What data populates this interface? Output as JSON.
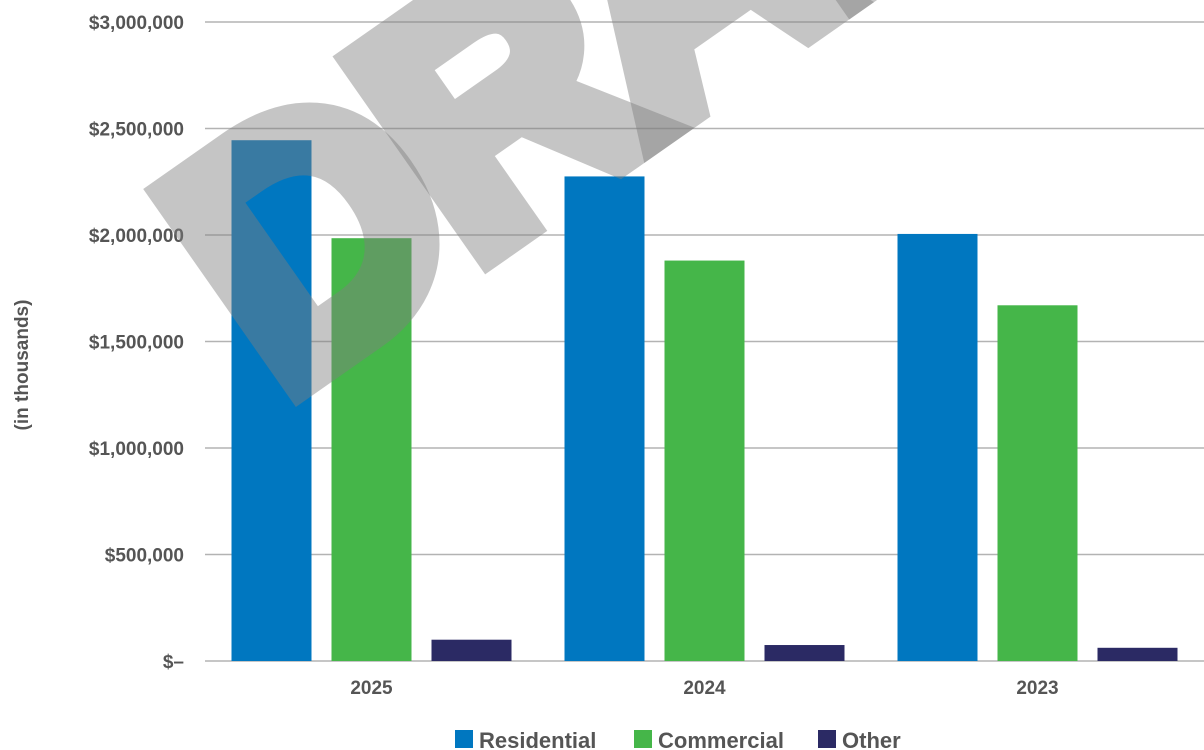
{
  "chart_data": {
    "type": "bar",
    "categories": [
      "2025",
      "2024",
      "2023"
    ],
    "series": [
      {
        "name": "Residential",
        "values": [
          2445000,
          2275000,
          2005000
        ],
        "color": "#0077c0"
      },
      {
        "name": "Commercial",
        "values": [
          1985000,
          1880000,
          1670000
        ],
        "color": "#45b649"
      },
      {
        "name": "Other",
        "values": [
          100000,
          75000,
          62000
        ],
        "color": "#2b2a64"
      }
    ],
    "ylabel": "(in thousands)",
    "ylim": [
      0,
      3000000
    ],
    "yticks": [
      0,
      500000,
      1000000,
      1500000,
      2000000,
      2500000,
      3000000
    ],
    "ytick_labels": [
      "$–",
      "$500,000",
      "$1,000,000",
      "$1,500,000",
      "$2,000,000",
      "$2,500,000",
      "$3,000,000"
    ],
    "grid": true,
    "legend_position": "bottom-center"
  },
  "watermark": {
    "text": "DRAFT",
    "color": "#7f7f7f"
  }
}
